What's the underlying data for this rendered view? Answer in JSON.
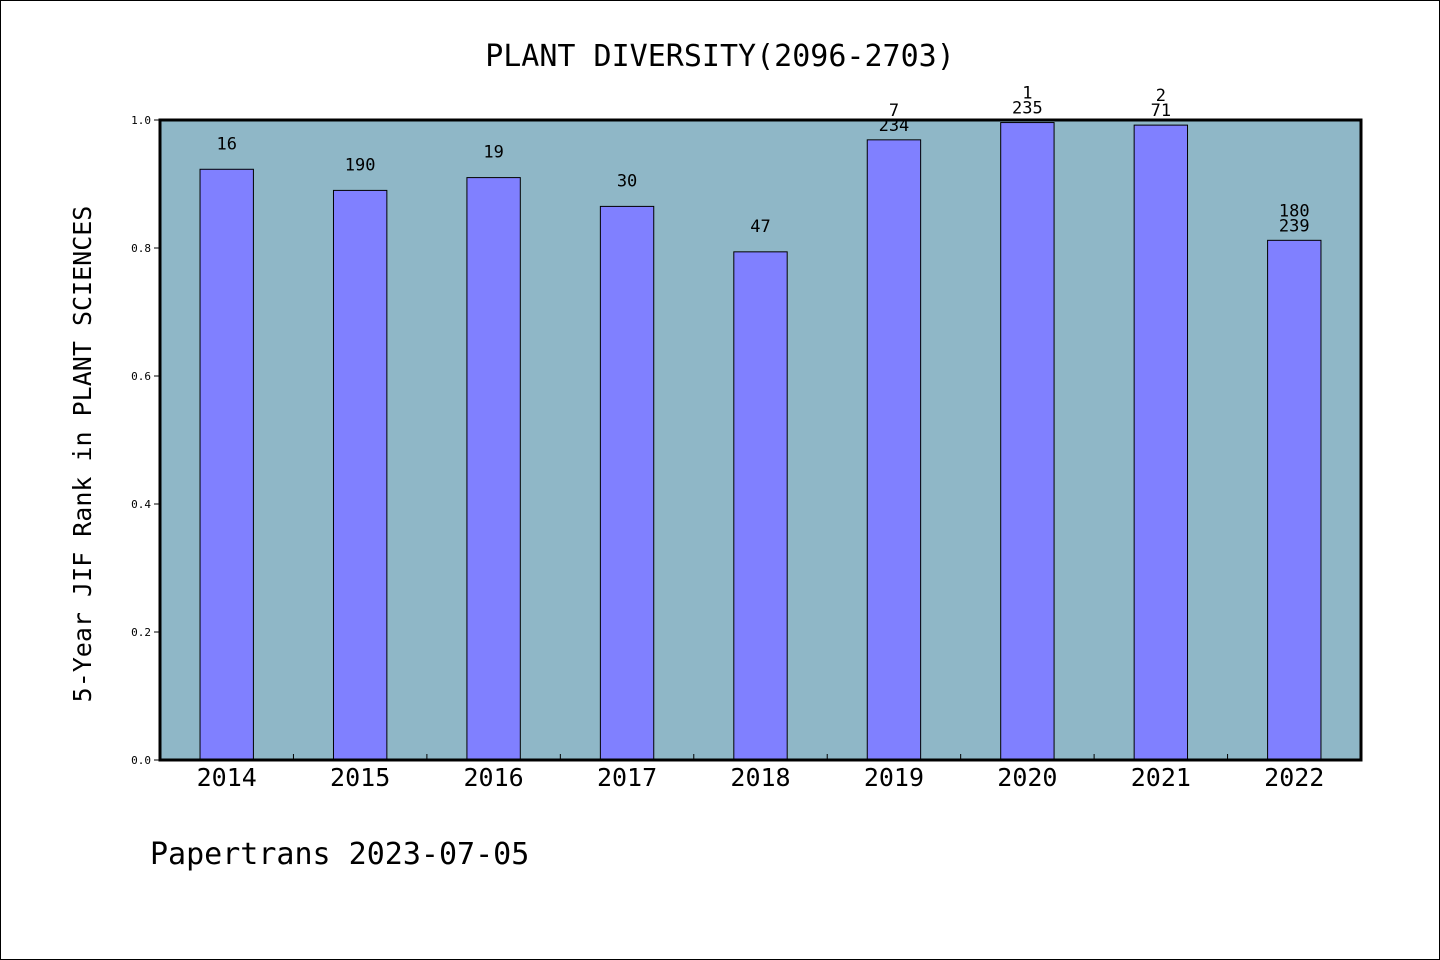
{
  "chart_data": {
    "type": "bar",
    "title": "PLANT DIVERSITY(2096-2703)",
    "ylabel": "5-Year JIF Rank in PLANT SCIENCES",
    "xlabel": "",
    "ylim": [
      0.0,
      1.0
    ],
    "yticks": [
      "0.0",
      "0.2",
      "0.4",
      "0.6",
      "0.8",
      "1.0"
    ],
    "categories": [
      "2014",
      "2015",
      "2016",
      "2017",
      "2018",
      "2019",
      "2020",
      "2021",
      "2022"
    ],
    "values": [
      0.923,
      0.89,
      0.91,
      0.865,
      0.794,
      0.969,
      0.996,
      0.992,
      0.812
    ],
    "bar_labels": [
      [
        "16"
      ],
      [
        "190"
      ],
      [
        "19"
      ],
      [
        "30"
      ],
      [
        "47"
      ],
      [
        "7",
        "234"
      ],
      [
        "1",
        "235"
      ],
      [
        "2",
        "71"
      ],
      [
        "180",
        "239"
      ]
    ],
    "grid": false,
    "colors": {
      "plot_background": "#8fb7c7",
      "bar_fill": "#8080ff",
      "bar_stroke": "#000000"
    }
  },
  "footer": {
    "text": "Papertrans 2023-07-05"
  }
}
